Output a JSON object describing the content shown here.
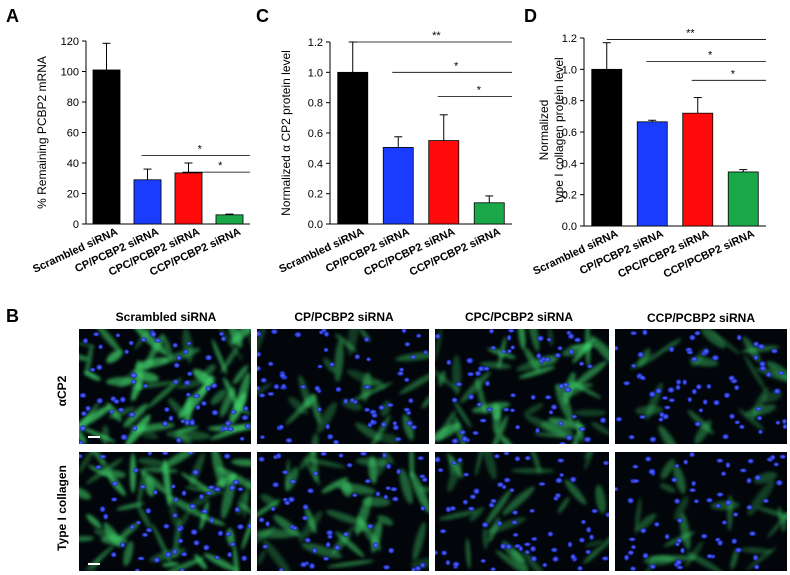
{
  "colors": {
    "black": "#000000",
    "blue": "#1a3cff",
    "red": "#ff0a0a",
    "green": "#1aa84a"
  },
  "chart_data": [
    {
      "type": "bar",
      "panel": "A",
      "categories": [
        "Scrambled siRNA",
        "CP/PCBP2 siRNA",
        "CPC/PCBP2 siRNA",
        "CCP/PCBP2 siRNA"
      ],
      "values": [
        101,
        29,
        33.5,
        6
      ],
      "errors": [
        17.5,
        7,
        6.5,
        0.5
      ],
      "title": "",
      "xlabel": "",
      "ylabel": "% Remaining PCBP2 mRNA",
      "ylim": [
        0,
        120
      ],
      "yticks": [
        "0",
        "20",
        "40",
        "60",
        "80",
        "100",
        "120"
      ],
      "significance": [
        {
          "from": 1,
          "to": 3,
          "label": "*"
        },
        {
          "from": 2,
          "to": 3,
          "label": "*"
        }
      ],
      "grid": false
    },
    {
      "type": "bar",
      "panel": "C",
      "categories": [
        "Scrambled siRNA",
        "CP/PCBP2 siRNA",
        "CPC/PCBP2 siRNA",
        "CCP/PCBP2 siRNA"
      ],
      "values": [
        1.0,
        0.505,
        0.55,
        0.14
      ],
      "errors": [
        0.2,
        0.07,
        0.17,
        0.045
      ],
      "title": "",
      "xlabel": "",
      "ylabel": "Normalized α CP2 protein level",
      "ylim": [
        0,
        1.2
      ],
      "yticks": [
        "0.0",
        "0.2",
        "0.4",
        "0.6",
        "0.8",
        "1.0",
        "1.2"
      ],
      "significance": [
        {
          "from": 0,
          "to": 3,
          "label": "**"
        },
        {
          "from": 1,
          "to": 3,
          "label": "*"
        },
        {
          "from": 2,
          "to": 3,
          "label": "*"
        }
      ],
      "grid": false
    },
    {
      "type": "bar",
      "panel": "D",
      "categories": [
        "Scrambled siRNA",
        "CP/PCBP2 siRNA",
        "CPC/PCBP2 siRNA",
        "CCP/PCBP2 siRNA"
      ],
      "values": [
        1.0,
        0.665,
        0.72,
        0.345
      ],
      "errors": [
        0.17,
        0.01,
        0.1,
        0.015
      ],
      "title": "",
      "xlabel": "",
      "ylabel": "Normalized type I collagen protein level",
      "ylabel_lines": [
        "Normalized",
        "type I collagen protein level"
      ],
      "ylim": [
        0,
        1.2
      ],
      "yticks": [
        "0.0",
        "0.2",
        "0.4",
        "0.6",
        "0.8",
        "1.0",
        "1.2"
      ],
      "significance": [
        {
          "from": 0,
          "to": 3,
          "label": "**"
        },
        {
          "from": 1,
          "to": 3,
          "label": "*"
        },
        {
          "from": 2,
          "to": 3,
          "label": "*"
        }
      ],
      "grid": false
    }
  ],
  "panel_b": {
    "letter": "B",
    "columns": [
      "Scrambled siRNA",
      "CP/PCBP2 siRNA",
      "CPC/PCBP2 siRNA",
      "CCP/PCBP2 siRNA"
    ],
    "rows": [
      "αCP2",
      "Type I collagen"
    ],
    "green_intensity": [
      [
        0.95,
        0.45,
        0.75,
        0.35
      ],
      [
        0.9,
        0.65,
        0.45,
        0.4
      ]
    ]
  }
}
